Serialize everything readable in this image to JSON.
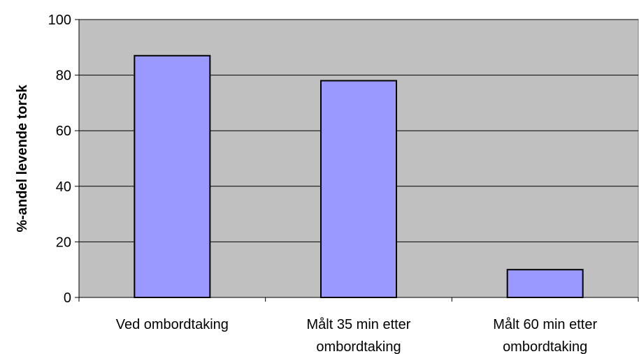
{
  "chart_data": {
    "type": "bar",
    "title": "",
    "xlabel": "",
    "ylabel": "%-andel levende torsk",
    "categories": [
      [
        "Ved ombordtaking"
      ],
      [
        "Målt 35 min etter",
        "ombordtaking"
      ],
      [
        "Målt 60 min etter",
        "ombordtaking"
      ]
    ],
    "values": [
      87,
      78,
      10
    ],
    "ylim": [
      0,
      100
    ],
    "yticks": [
      "0",
      "20",
      "40",
      "60",
      "80",
      "100"
    ],
    "grid": true,
    "legend": "none",
    "colors": {
      "plot_background": "#c0c0c0",
      "bar_fill": "#9999ff",
      "bar_stroke": "#000000",
      "gridline": "#000000"
    }
  }
}
